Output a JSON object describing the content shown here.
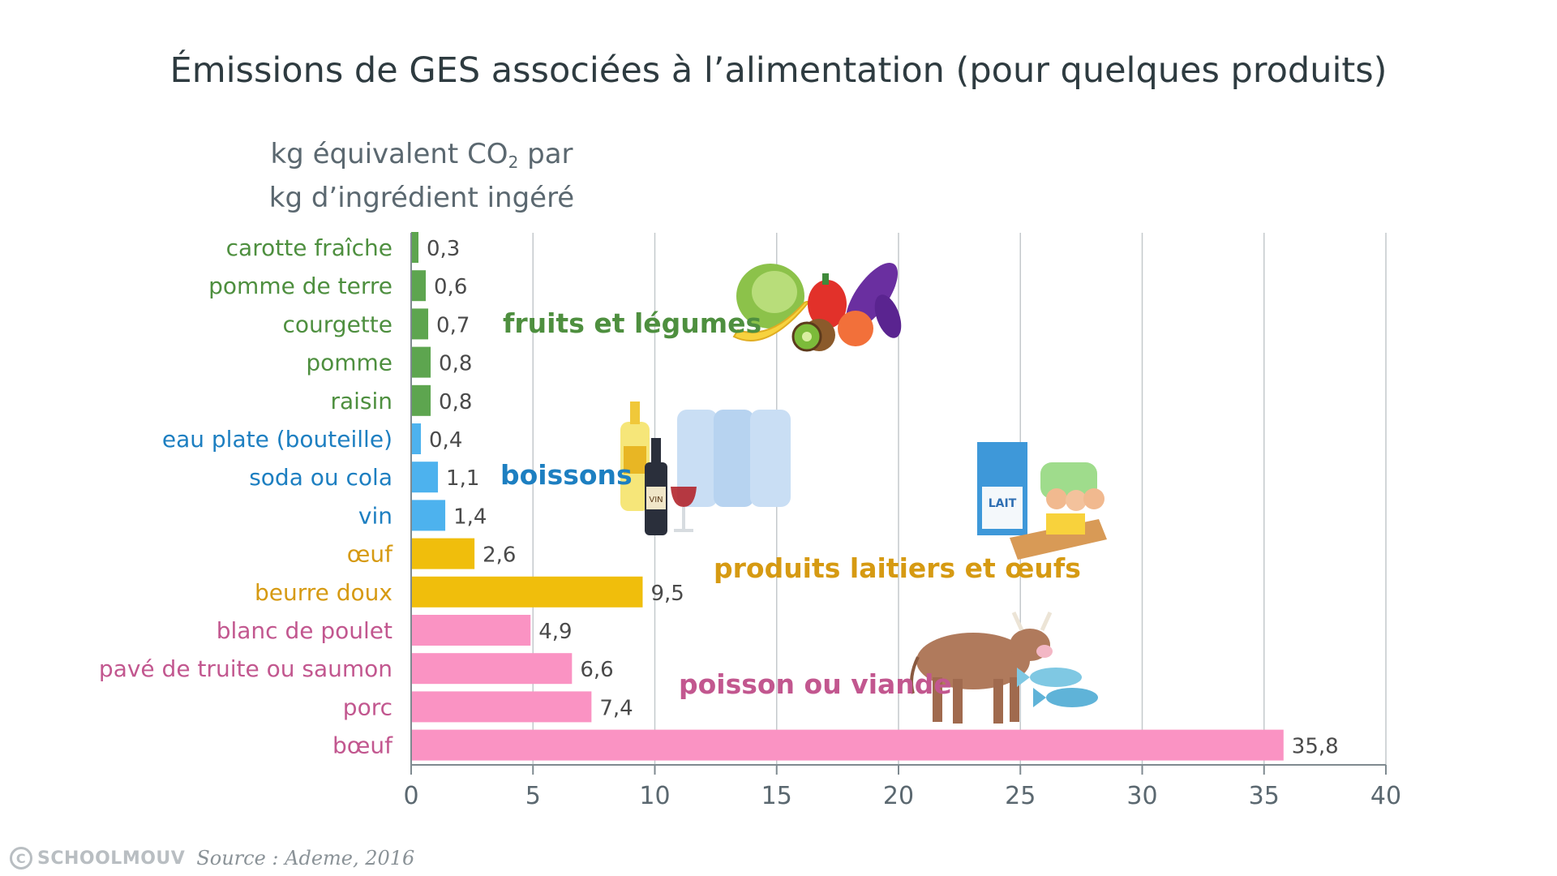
{
  "chart_data": {
    "type": "bar",
    "orientation": "horizontal",
    "title": "Émissions de GES associées à l’alimentation (pour quelques produits)",
    "ylabel_line1_before": "kg équivalent CO",
    "ylabel_line1_sub": "2",
    "ylabel_line1_after": " par",
    "ylabel_line2": "kg d’ingrédient ingéré",
    "xlim": [
      0,
      40
    ],
    "xticks": [
      0,
      5,
      10,
      15,
      20,
      25,
      30,
      35,
      40
    ],
    "grid": true,
    "categories": [
      "carotte fraîche",
      "pomme de terre",
      "courgette",
      "pomme",
      "raisin",
      "eau plate (bouteille)",
      "soda ou cola",
      "vin",
      "œuf",
      "beurre doux",
      "blanc de poulet",
      "pavé de truite ou saumon",
      "porc",
      "bœuf"
    ],
    "values": [
      0.3,
      0.6,
      0.7,
      0.8,
      0.8,
      0.4,
      1.1,
      1.4,
      2.6,
      9.5,
      4.9,
      6.6,
      7.4,
      35.8
    ],
    "value_labels": [
      "0,3",
      "0,6",
      "0,7",
      "0,8",
      "0,8",
      "0,4",
      "1,1",
      "1,4",
      "2,6",
      "9,5",
      "4,9",
      "6,6",
      "7,4",
      "35,8"
    ],
    "groups": [
      {
        "name": "fruits et légumes",
        "indices": [
          0,
          1,
          2,
          3,
          4
        ],
        "bar_color": "#5da54f",
        "text_color": "#4e8f3f"
      },
      {
        "name": "boissons",
        "indices": [
          5,
          6,
          7
        ],
        "bar_color": "#4db2ee",
        "text_color": "#1d7fc1"
      },
      {
        "name": "produits laitiers et œufs",
        "indices": [
          8,
          9
        ],
        "bar_color": "#f0be0c",
        "text_color": "#d69a12"
      },
      {
        "name": "poisson ou viande",
        "indices": [
          10,
          11,
          12,
          13
        ],
        "bar_color": "#fa93c3",
        "text_color": "#c2578f"
      }
    ]
  },
  "illustrations": {
    "milk_label": "LAIT",
    "wine_label": "VIN"
  },
  "footer": {
    "brand": "SCHOOLMOUV",
    "copyright_symbol": "C",
    "source": "Source : Ademe, 2016"
  }
}
